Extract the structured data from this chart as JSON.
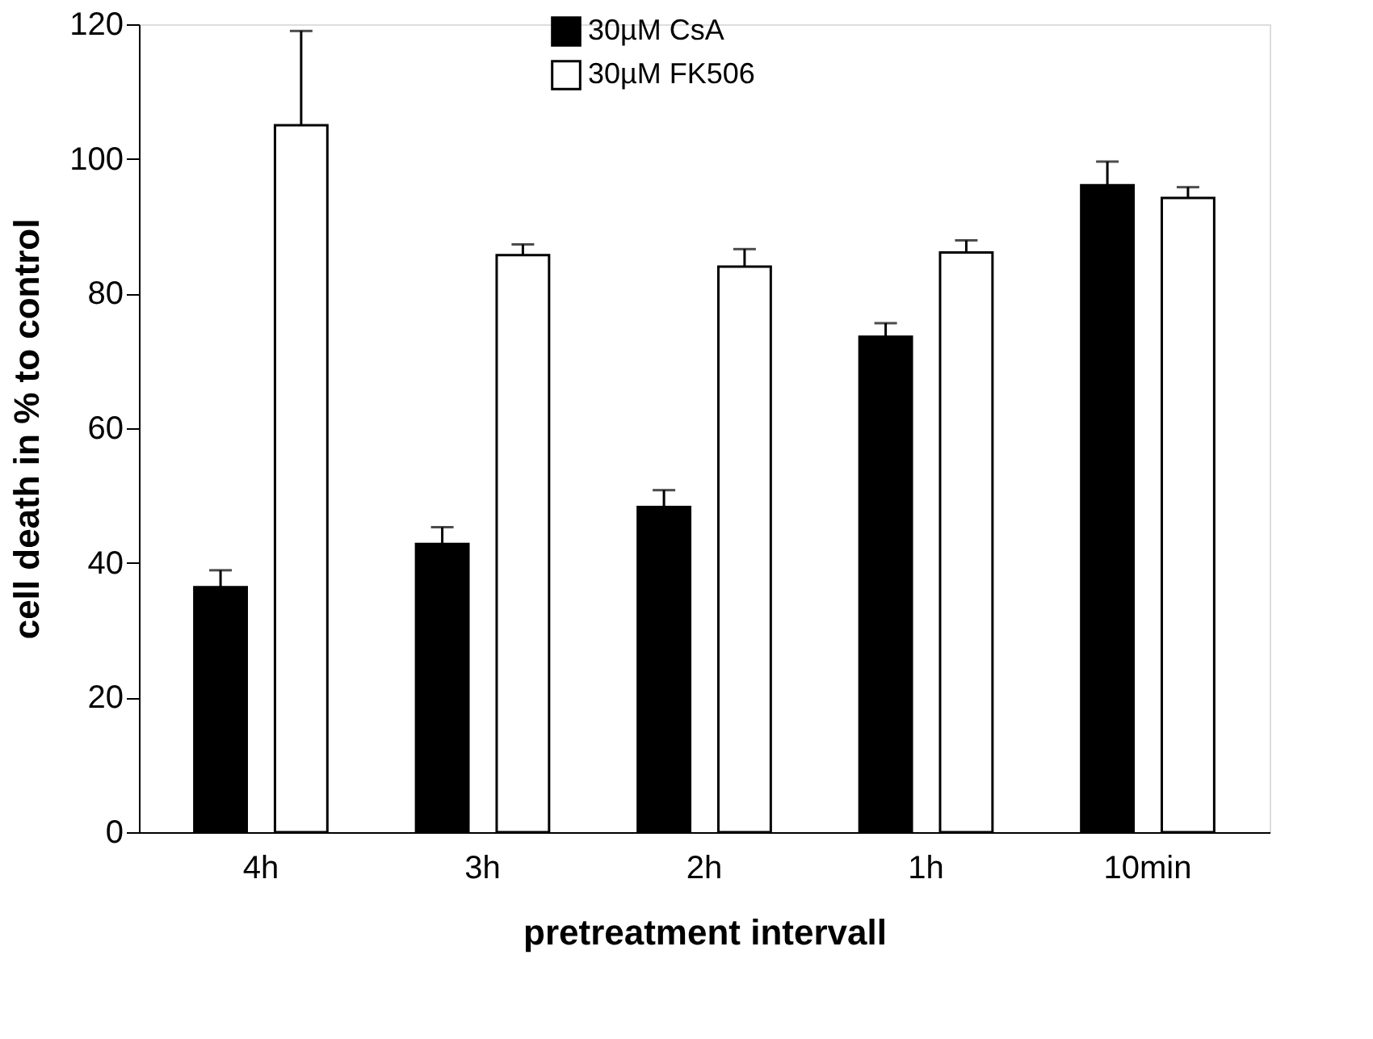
{
  "chart_data": {
    "type": "bar",
    "xlabel": "pretreatment intervall",
    "ylabel": "cell death in % to control",
    "categories": [
      "4h",
      "3h",
      "2h",
      "1h",
      "10min"
    ],
    "series": [
      {
        "name": "30µM CsA",
        "color": "#000000",
        "values": [
          36.4,
          42.8,
          48.3,
          73.6,
          96.1
        ],
        "errors": [
          [
            36.4,
            38.9
          ],
          [
            42.8,
            45.3
          ],
          [
            48.3,
            50.8
          ],
          [
            73.6,
            75.6
          ],
          [
            96.1,
            99.6
          ]
        ]
      },
      {
        "name": "30µM FK506",
        "color": "#ffffff",
        "values": [
          105,
          85.7,
          84,
          86.1,
          94.2
        ],
        "errors": [
          [
            105,
            119
          ],
          [
            85.7,
            87.3
          ],
          [
            84,
            86.6
          ],
          [
            86.1,
            87.9
          ],
          [
            94.2,
            95.8
          ]
        ]
      }
    ],
    "ylim": [
      0,
      120
    ],
    "yticks": [
      0,
      20,
      40,
      60,
      80,
      100,
      120
    ],
    "grid": false,
    "legend": "top"
  }
}
